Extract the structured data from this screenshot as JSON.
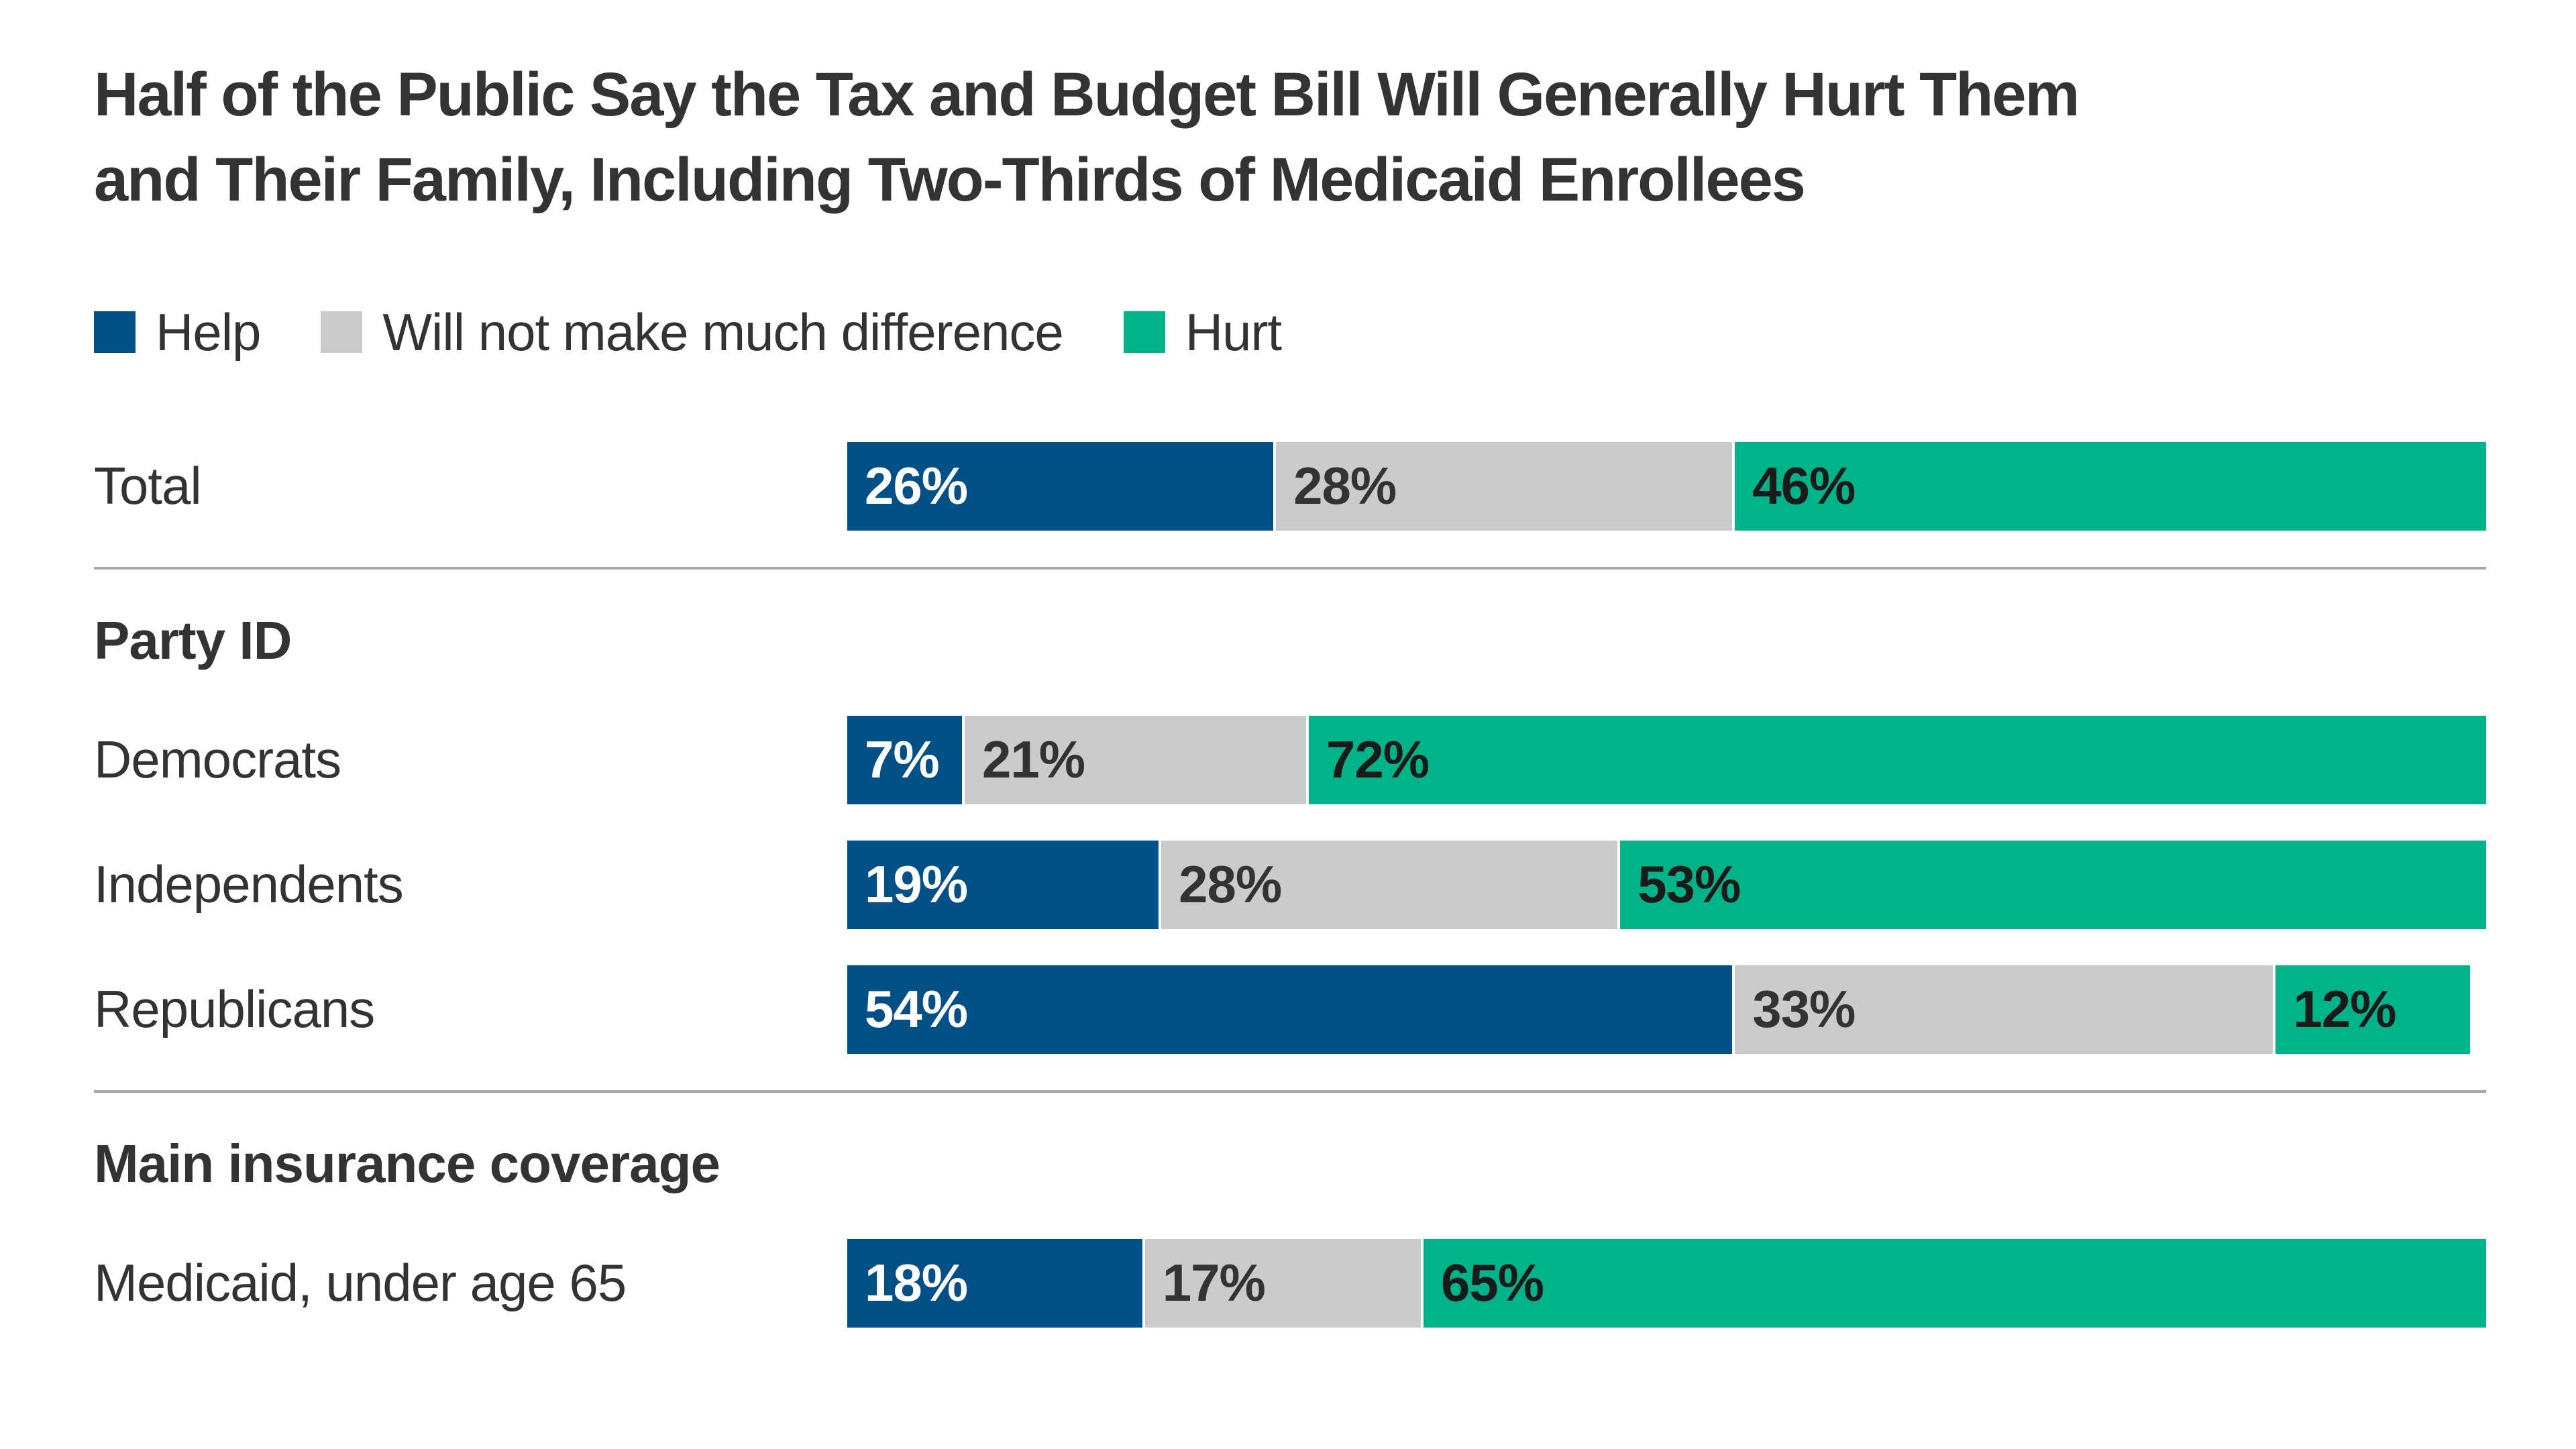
{
  "title": {
    "line1": "Half of the Public Say the Tax and Budget Bill Will Generally Hurt Them",
    "line2": "and Their Family, Including Two-Thirds of Medicaid Enrollees"
  },
  "legend": [
    {
      "key": "help",
      "label": "Help"
    },
    {
      "key": "no_difference",
      "label": "Will not make much difference"
    },
    {
      "key": "hurt",
      "label": "Hurt"
    }
  ],
  "colors": {
    "help": "#034F87",
    "no_difference": "#CBCBCB",
    "hurt": "#00B388",
    "divider": "#A6A6A6",
    "text_dark": "#333333",
    "value_label_colors": [
      "#FFFFFF",
      "#333333",
      "#1A1A1A"
    ]
  },
  "chart_data": {
    "type": "bar",
    "orientation": "horizontal",
    "stacked": true,
    "unit": "%",
    "xlim": [
      0,
      100
    ],
    "grid": false,
    "legend_position": "top-left",
    "series_names": [
      "Help",
      "Will not make much difference",
      "Hurt"
    ],
    "rows": [
      {
        "type": "bar",
        "label": "Total",
        "values": [
          26,
          28,
          46
        ]
      },
      {
        "type": "divider"
      },
      {
        "type": "section",
        "label": "Party ID"
      },
      {
        "type": "bar",
        "label": "Democrats",
        "values": [
          7,
          21,
          72
        ]
      },
      {
        "type": "bar",
        "label": "Independents",
        "values": [
          19,
          28,
          53
        ]
      },
      {
        "type": "bar",
        "label": "Republicans",
        "values": [
          54,
          33,
          12
        ]
      },
      {
        "type": "divider"
      },
      {
        "type": "section",
        "label": "Main insurance coverage"
      },
      {
        "type": "bar",
        "label": "Medicaid, under age 65",
        "values": [
          18,
          17,
          65
        ]
      }
    ]
  }
}
